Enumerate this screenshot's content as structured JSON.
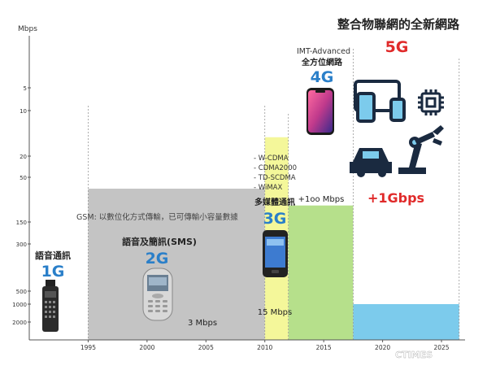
{
  "chart_data": {
    "type": "bar",
    "y_axis": {
      "label": "Mbps",
      "ticks": [
        "2000",
        "1000",
        "500",
        "300",
        "150",
        "50",
        "20",
        "10",
        "5"
      ],
      "tick_values": [
        2000,
        1000,
        500,
        300,
        150,
        50,
        20,
        10,
        5
      ],
      "scale": "log"
    },
    "x_axis": {
      "ticks": [
        1995,
        2000,
        2005,
        2010,
        2015,
        2020,
        2025
      ],
      "range": [
        1990,
        2027
      ]
    },
    "generations": [
      {
        "id": "1G",
        "title": "語音通訊",
        "label": "1G",
        "start": 1990,
        "end": 1995,
        "value": null,
        "color": "#ffffff",
        "label_color": "#2a7fc9"
      },
      {
        "id": "2G",
        "title": "語音及簡訊(SMS)",
        "label": "2G",
        "start": 1995,
        "end": 2010,
        "value": 3,
        "value_label": "3 Mbps",
        "color": "#c4c4c4",
        "label_color": "#2a7fc9",
        "note": "GSM: 以數位化方式傳輸，已可傳輸小容量數據"
      },
      {
        "id": "3G",
        "title": "多媒體通訊",
        "label": "3G",
        "start": 2010,
        "end": 2012,
        "value": 15,
        "value_label": "15 Mbps",
        "color": "#f4f79a",
        "label_color": "#2a7fc9",
        "standards": [
          "- W-CDMA",
          "- CDMA2000",
          "- TD-SCDMA",
          "- WiMAX"
        ]
      },
      {
        "id": "4G",
        "title": "全方位網路",
        "label": "4G",
        "subtitle": "IMT-Advanced",
        "start": 2012,
        "end": 2017.5,
        "value": 100,
        "value_label": "+1oo Mbps",
        "color": "#b6e08b",
        "label_color": "#2a7fc9"
      },
      {
        "id": "5G",
        "title": "整合物聯網的全新網路",
        "label": "5G",
        "start": 2017.5,
        "end": 2026.5,
        "value": 1000,
        "value_label": "+1Gbps",
        "color": "#7ccbec",
        "label_color": "#e02a2a"
      }
    ],
    "grid": false,
    "watermark": "CTIMES",
    "colors": {
      "axis": "#555555",
      "divider": "#999999",
      "blue_label": "#2a7fc9",
      "red_label": "#e02a2a"
    }
  }
}
